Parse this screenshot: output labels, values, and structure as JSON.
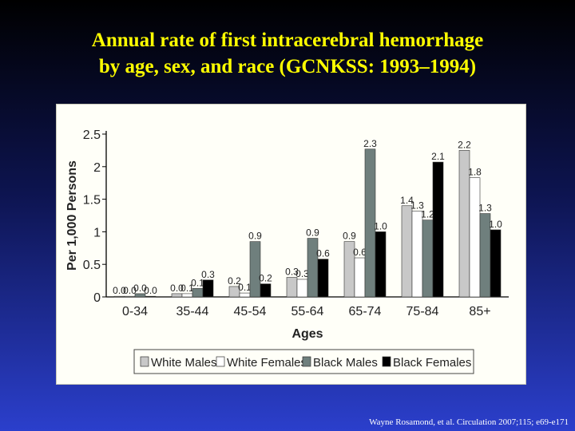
{
  "slide": {
    "title_line1": "Annual rate of first intracerebral hemorrhage",
    "title_line2": "by age, sex, and race (GCNKSS: 1993–1994)",
    "citation": "Wayne Rosamond, et al. Circulation  2007;115; e69-e171",
    "colors": {
      "title": "#ffff00",
      "background_top": "#000000",
      "background_bottom": "#2b3fcc"
    }
  },
  "chart_data": {
    "type": "bar",
    "title": "",
    "xlabel": "Ages",
    "ylabel": "Per 1,000 Persons",
    "ylim": [
      0,
      2.5
    ],
    "yticks": [
      "0",
      "0.5",
      "1",
      "1.5",
      "2",
      "2.5"
    ],
    "grid": false,
    "legend_position": "bottom",
    "categories": [
      "0-34",
      "35-44",
      "45-54",
      "55-64",
      "65-74",
      "75-84",
      "85+"
    ],
    "series": [
      {
        "name": "White Males",
        "color": "#c8c8c8",
        "values": [
          0.0,
          0.05,
          0.16,
          0.3,
          0.85,
          1.4,
          2.25
        ],
        "labels": [
          "0.0",
          "0.0",
          "0.2",
          "0.3",
          "0.9",
          "1.4",
          "2.2"
        ]
      },
      {
        "name": "White Females",
        "color": "#ffffff",
        "values": [
          0.0,
          0.05,
          0.06,
          0.27,
          0.6,
          1.32,
          1.83
        ],
        "labels": [
          "0.0",
          "0.1",
          "0.1",
          "0.3",
          "0.6",
          "1.3",
          "1.8"
        ]
      },
      {
        "name": "Black Males",
        "color": "#6f7f7d",
        "values": [
          0.05,
          0.13,
          0.85,
          0.9,
          2.27,
          1.18,
          1.28
        ],
        "labels": [
          "0.0",
          "0.1",
          "0.9",
          "0.9",
          "2.3",
          "1.2",
          "1.3"
        ]
      },
      {
        "name": "Black Females",
        "color": "#000000",
        "values": [
          0.0,
          0.26,
          0.2,
          0.58,
          1.0,
          2.07,
          1.03
        ],
        "labels": [
          "0.0",
          "0.3",
          "0.2",
          "0.6",
          "1.0",
          "2.1",
          "1.0"
        ]
      }
    ]
  }
}
